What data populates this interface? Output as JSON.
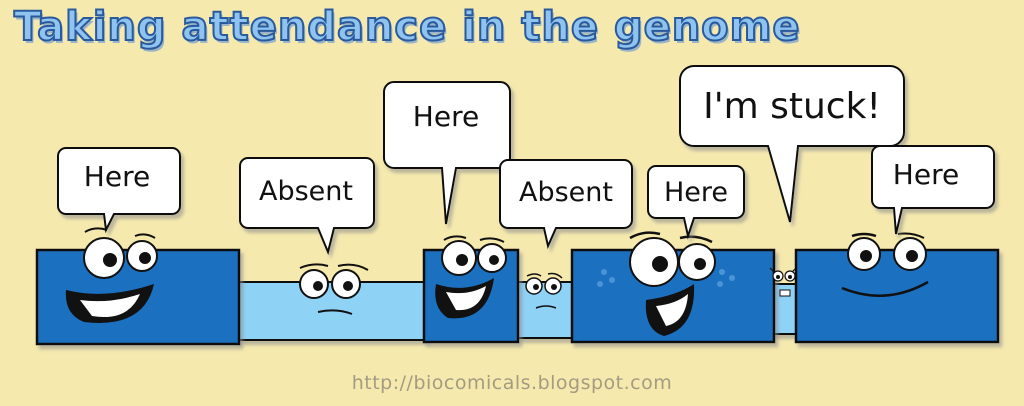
{
  "title": "Taking attendance in the genome",
  "url": "http://biocomicals.blogspot.com",
  "bubbles": {
    "b1": "Here",
    "b2": "Absent",
    "b3": "Here",
    "b4": "Absent",
    "b5": "Here",
    "b6": "I'm stuck!",
    "b7": "Here"
  },
  "colors": {
    "background": "#f5e9ae",
    "block": "#1a6fc0",
    "strand": "#8ed2f6",
    "title_fill": "#8fc3f0",
    "title_outline": "#2a5a9c"
  }
}
